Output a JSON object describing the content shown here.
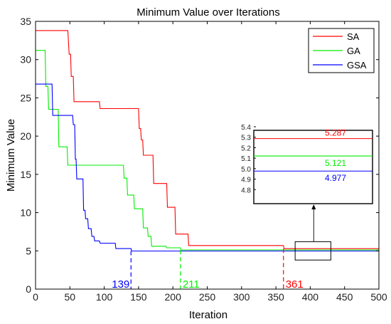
{
  "chart_data": {
    "type": "line",
    "title": "Minimum Value over Iterations",
    "xlabel": "Iteration",
    "ylabel": "Minimum Value",
    "xlim": [
      0,
      500
    ],
    "ylim": [
      0,
      35
    ],
    "xticks": [
      "0",
      "50",
      "100",
      "150",
      "200",
      "250",
      "300",
      "350",
      "400",
      "450",
      "500"
    ],
    "yticks": [
      "0",
      "5",
      "10",
      "15",
      "20",
      "25",
      "30",
      "35"
    ],
    "grid": false,
    "legend_position": "top-right",
    "series": [
      {
        "name": "SA",
        "color": "#ff0000",
        "x": [
          0,
          47,
          49,
          51,
          52,
          55,
          56,
          93,
          94,
          150,
          151,
          153,
          154,
          156,
          157,
          171,
          172,
          191,
          192,
          203,
          204,
          222,
          223,
          361,
          362,
          500
        ],
        "y": [
          33.8,
          33.8,
          30.7,
          30.7,
          27.8,
          27.8,
          24.5,
          24.5,
          23.6,
          23.6,
          21.0,
          21.0,
          19.5,
          19.5,
          17.5,
          17.5,
          13.8,
          13.8,
          10.7,
          10.7,
          7.2,
          7.2,
          5.7,
          5.7,
          5.287,
          5.287
        ]
      },
      {
        "name": "GA",
        "color": "#00ee00",
        "x": [
          0,
          14,
          15,
          18,
          19,
          33,
          34,
          46,
          47,
          128,
          129,
          133,
          134,
          143,
          144,
          156,
          157,
          163,
          164,
          168,
          169,
          190,
          191,
          211,
          212,
          500
        ],
        "y": [
          31.2,
          31.2,
          26.5,
          26.5,
          23.5,
          23.5,
          18.6,
          18.6,
          16.2,
          16.2,
          14.5,
          14.5,
          12.3,
          12.3,
          10.5,
          10.5,
          8.0,
          8.0,
          6.9,
          6.9,
          5.6,
          5.6,
          5.4,
          5.4,
          5.121,
          5.121
        ]
      },
      {
        "name": "GSA",
        "color": "#0000ff",
        "x": [
          0,
          24,
          25,
          54,
          55,
          57,
          58,
          59,
          60,
          69,
          70,
          72,
          73,
          76,
          77,
          81,
          82,
          85,
          86,
          93,
          94,
          116,
          117,
          139,
          140,
          500
        ],
        "y": [
          26.8,
          26.8,
          22.7,
          22.7,
          21.5,
          21.5,
          17.0,
          17.0,
          14.4,
          14.4,
          10.3,
          10.3,
          9.2,
          9.2,
          7.9,
          7.9,
          6.9,
          6.9,
          6.3,
          6.3,
          6.0,
          6.0,
          5.3,
          5.3,
          4.977,
          4.977
        ]
      }
    ],
    "convergence_markers": [
      {
        "series": "GSA",
        "x": 139,
        "label": "139",
        "color": "#0000ff"
      },
      {
        "series": "GA",
        "x": 211,
        "label": "211",
        "color": "#00ee00"
      },
      {
        "series": "SA",
        "x": 361,
        "label": "361",
        "color": "#ff0000"
      }
    ],
    "inset": {
      "xlim": [
        380,
        430
      ],
      "ylim": [
        4.7,
        5.4
      ],
      "yticks": [
        "5.4",
        "5.3",
        "5.2",
        "5.1",
        "5.0",
        "4.9",
        "4.8"
      ],
      "annotations": [
        {
          "series": "SA",
          "label": "5.287",
          "color": "#ff0000"
        },
        {
          "series": "GA",
          "label": "5.121",
          "color": "#00ee00"
        },
        {
          "series": "GSA",
          "label": "4.977",
          "color": "#0000ff"
        }
      ]
    }
  }
}
